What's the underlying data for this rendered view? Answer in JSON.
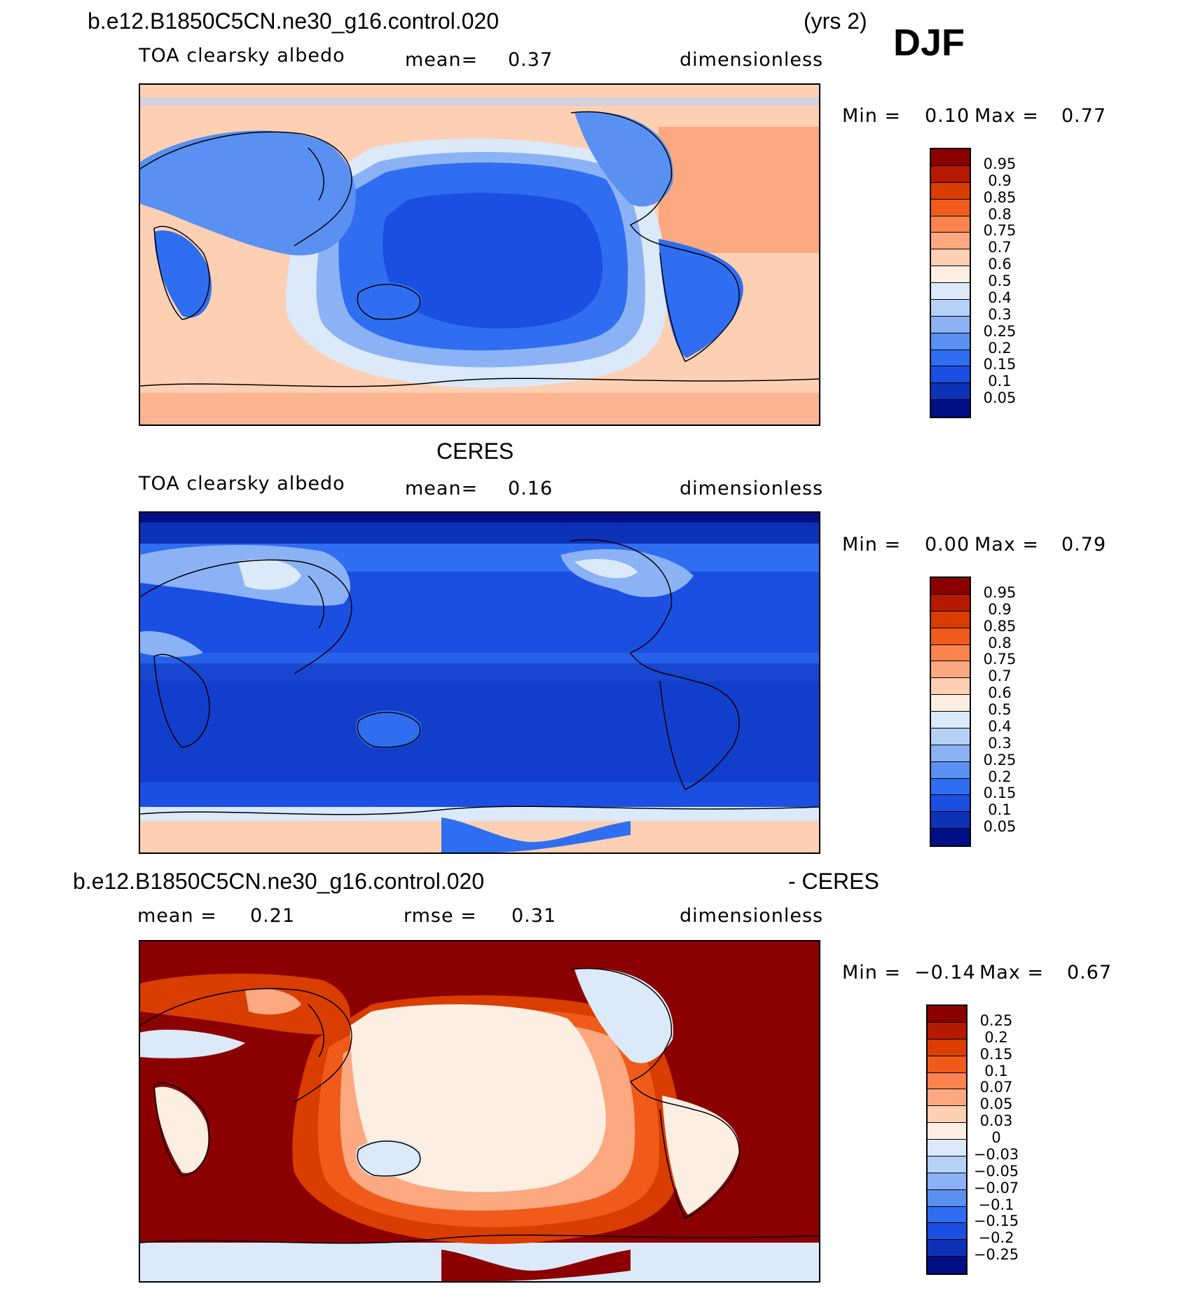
{
  "season": "DJF",
  "years": "(yrs 2)",
  "case_name": "b.e12.B1850C5CN.ne30_g16.control.020",
  "panels": [
    {
      "title": "b.e12.B1850C5CN.ne30_g16.control.020",
      "variable": "TOA clearsky albedo",
      "stat1": "mean=",
      "stat1_value": "0.37",
      "units": "dimensionless",
      "min_label": "Min =",
      "min_value": "0.10",
      "max_label": "Max =",
      "max_value": "0.77",
      "colorbar": [
        "0.95",
        "0.9",
        "0.85",
        "0.8",
        "0.75",
        "0.7",
        "0.6",
        "0.5",
        "0.4",
        "0.3",
        "0.25",
        "0.2",
        "0.15",
        "0.1",
        "0.05"
      ],
      "colors": [
        "#8b0000",
        "#b51a00",
        "#d93d00",
        "#f05b1c",
        "#fb8350",
        "#fca880",
        "#fdd0b4",
        "#fdeee2",
        "#dbe9f9",
        "#b6d1f7",
        "#8bb2f5",
        "#5990f2",
        "#2f6ef0",
        "#1b4fe2",
        "#0d32b8",
        "#000f85"
      ]
    },
    {
      "title": "CERES",
      "variable": "TOA clearsky albedo",
      "stat1": "mean=",
      "stat1_value": "0.16",
      "units": "dimensionless",
      "min_label": "Min =",
      "min_value": "0.00",
      "max_label": "Max =",
      "max_value": "0.79",
      "colorbar": [
        "0.95",
        "0.9",
        "0.85",
        "0.8",
        "0.75",
        "0.7",
        "0.6",
        "0.5",
        "0.4",
        "0.3",
        "0.25",
        "0.2",
        "0.15",
        "0.1",
        "0.05"
      ],
      "colors": [
        "#8b0000",
        "#b51a00",
        "#d93d00",
        "#f05b1c",
        "#fb8350",
        "#fca880",
        "#fdd0b4",
        "#fdeee2",
        "#dbe9f9",
        "#b6d1f7",
        "#8bb2f5",
        "#5990f2",
        "#2f6ef0",
        "#1b4fe2",
        "#0d32b8",
        "#000f85"
      ]
    },
    {
      "title": "b.e12.B1850C5CN.ne30_g16.control.020",
      "title_suffix": "- CERES",
      "stat1": "mean =",
      "stat1_value": "0.21",
      "stat2": "rmse =",
      "stat2_value": "0.31",
      "units": "dimensionless",
      "min_label": "Min =",
      "min_value": "−0.14",
      "max_label": "Max =",
      "max_value": "0.67",
      "colorbar": [
        "0.25",
        "0.2",
        "0.15",
        "0.1",
        "0.07",
        "0.05",
        "0.03",
        "0",
        "−0.03",
        "−0.05",
        "−0.07",
        "−0.1",
        "−0.15",
        "−0.2",
        "−0.25"
      ],
      "colors": [
        "#8b0000",
        "#b51a00",
        "#d93d00",
        "#f05b1c",
        "#fb8350",
        "#fca880",
        "#fdd0b4",
        "#fdeee2",
        "#dbe9f9",
        "#b6d1f7",
        "#8bb2f5",
        "#5990f2",
        "#2f6ef0",
        "#1b4fe2",
        "#0d32b8",
        "#000f85"
      ]
    }
  ],
  "chart_data": [
    {
      "type": "heatmap",
      "title": "b.e12.B1850C5CN.ne30_g16.control.020",
      "subtitle": "TOA clearsky albedo",
      "units": "dimensionless",
      "mean": 0.37,
      "min": 0.1,
      "max": 0.77,
      "projection": "cylindrical equidistant, Pacific-centred",
      "levels": [
        0.05,
        0.1,
        0.15,
        0.2,
        0.25,
        0.3,
        0.4,
        0.5,
        0.6,
        0.7,
        0.75,
        0.8,
        0.85,
        0.9,
        0.95
      ]
    },
    {
      "type": "heatmap",
      "title": "CERES",
      "subtitle": "TOA clearsky albedo",
      "units": "dimensionless",
      "mean": 0.16,
      "min": 0.0,
      "max": 0.79,
      "projection": "cylindrical equidistant, Pacific-centred",
      "levels": [
        0.05,
        0.1,
        0.15,
        0.2,
        0.25,
        0.3,
        0.4,
        0.5,
        0.6,
        0.7,
        0.75,
        0.8,
        0.85,
        0.9,
        0.95
      ]
    },
    {
      "type": "heatmap",
      "title": "b.e12.B1850C5CN.ne30_g16.control.020 - CERES",
      "units": "dimensionless",
      "mean": 0.21,
      "rmse": 0.31,
      "min": -0.14,
      "max": 0.67,
      "projection": "cylindrical equidistant, Pacific-centred",
      "levels": [
        -0.25,
        -0.2,
        -0.15,
        -0.1,
        -0.07,
        -0.05,
        -0.03,
        0,
        0.03,
        0.05,
        0.07,
        0.1,
        0.15,
        0.2,
        0.25
      ]
    }
  ]
}
